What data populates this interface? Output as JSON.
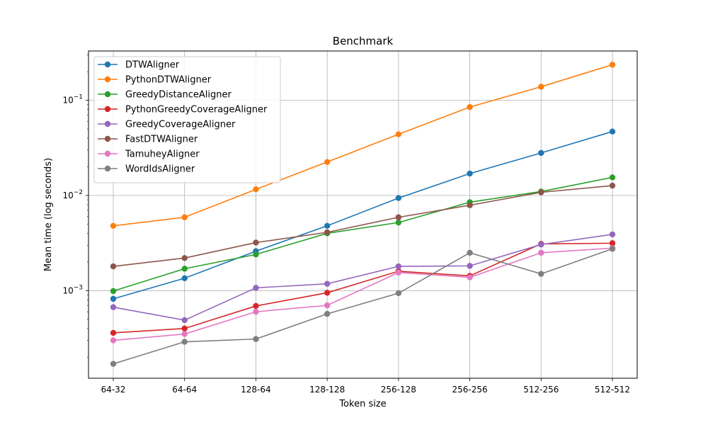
{
  "chart_data": {
    "type": "line",
    "title": "Benchmark",
    "xlabel": "Token size",
    "ylabel": "Mean time (log seconds)",
    "yscale": "log",
    "ylim": [
      0.00012,
      0.33
    ],
    "grid": true,
    "legend_position": "top-left",
    "categories": [
      "64-32",
      "64-64",
      "128-64",
      "128-128",
      "256-128",
      "256-256",
      "512-256",
      "512-512"
    ],
    "y_ticks": [
      {
        "value": 0.001,
        "base": "10",
        "exp": "−3"
      },
      {
        "value": 0.01,
        "base": "10",
        "exp": "−2"
      },
      {
        "value": 0.1,
        "base": "10",
        "exp": "−1"
      }
    ],
    "series": [
      {
        "name": "DTWAligner",
        "color": "#1f77b4",
        "values": [
          0.00082,
          0.00135,
          0.0026,
          0.0048,
          0.0094,
          0.017,
          0.028,
          0.047
        ]
      },
      {
        "name": "PythonDTWAligner",
        "color": "#ff7f0e",
        "values": [
          0.0048,
          0.0059,
          0.0116,
          0.0225,
          0.044,
          0.085,
          0.139,
          0.237
        ]
      },
      {
        "name": "GreedyDistanceAligner",
        "color": "#2ca02c",
        "values": [
          0.00099,
          0.0017,
          0.0024,
          0.004,
          0.0052,
          0.0085,
          0.011,
          0.0155
        ]
      },
      {
        "name": "PythonGreedyCoverageAligner",
        "color": "#d62728",
        "values": [
          0.00036,
          0.0004,
          0.00069,
          0.00095,
          0.0016,
          0.00143,
          0.0031,
          0.00315
        ]
      },
      {
        "name": "GreedyCoverageAligner",
        "color": "#9467bd",
        "values": [
          0.00067,
          0.00049,
          0.00107,
          0.00118,
          0.0018,
          0.00182,
          0.00305,
          0.0039
        ]
      },
      {
        "name": "FastDTWAligner",
        "color": "#8c564b",
        "values": [
          0.0018,
          0.0022,
          0.0032,
          0.0041,
          0.0059,
          0.0079,
          0.0108,
          0.0127
        ]
      },
      {
        "name": "TamuheyAligner",
        "color": "#e377c2",
        "values": [
          0.0003,
          0.00035,
          0.0006,
          0.0007,
          0.00155,
          0.00138,
          0.0025,
          0.0028
        ]
      },
      {
        "name": "WordIdsAligner",
        "color": "#7f7f7f",
        "values": [
          0.00017,
          0.00029,
          0.00031,
          0.00057,
          0.00094,
          0.0025,
          0.0015,
          0.00275
        ]
      }
    ]
  }
}
